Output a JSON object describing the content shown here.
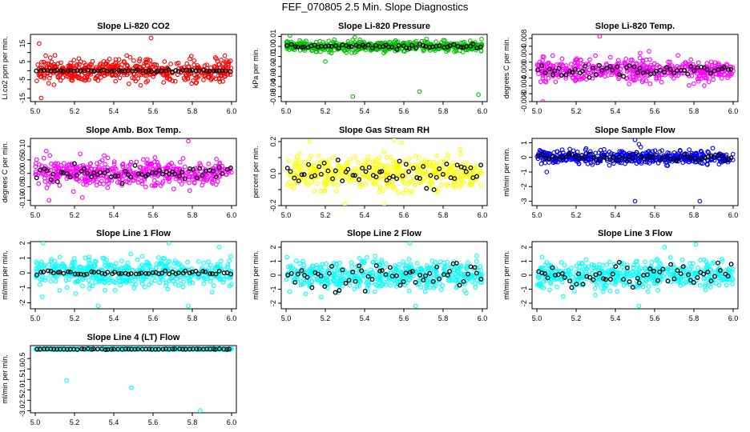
{
  "figure": {
    "title": "FEF_070805  2.5 Min. Slope Diagnostics"
  },
  "chart_data": [
    {
      "id": "co2",
      "type": "scatter",
      "title": "Slope Li-820 CO2",
      "ylabel": "Li.co2 ppm per min.",
      "xlim": [
        5.0,
        6.0
      ],
      "ylim": [
        -17,
        20
      ],
      "xticks": [
        5.0,
        5.2,
        5.4,
        5.6,
        5.8,
        6.0
      ],
      "yticks": [
        -15,
        -10,
        -5,
        0,
        5,
        10,
        15
      ],
      "ytick_labels": [
        "-15",
        "",
        "-5",
        "",
        "5",
        "",
        "15"
      ],
      "color": "#ff0000",
      "spread": 5,
      "center": 0,
      "black_spread": 0.5,
      "extra_points": [
        [
          5.02,
          15
        ],
        [
          5.59,
          18
        ],
        [
          5.03,
          -15
        ]
      ]
    },
    {
      "id": "pressure",
      "type": "scatter",
      "title": "Slope Li-820 Pressure",
      "ylabel": "kPa per min.",
      "xlim": [
        5.0,
        6.0
      ],
      "ylim": [
        -0.055,
        0.012
      ],
      "xticks": [
        5.0,
        5.2,
        5.4,
        5.6,
        5.8,
        6.0
      ],
      "yticks": [
        -0.05,
        -0.04,
        -0.03,
        -0.02,
        -0.01,
        0.0,
        0.01
      ],
      "ytick_labels": [
        "-0.05",
        "-0.04",
        "-0.03",
        "-0.02",
        "-0.01",
        "0.00",
        "0.01"
      ],
      "color": "#00c000",
      "spread": 0.004,
      "center": 0.0,
      "black_spread": 0.002,
      "extra_points": [
        [
          5.34,
          -0.05
        ],
        [
          5.98,
          -0.048
        ],
        [
          5.68,
          -0.045
        ],
        [
          5.2,
          -0.015
        ],
        [
          5.02,
          0.011
        ]
      ]
    },
    {
      "id": "temp",
      "type": "scatter",
      "title": "Slope Li-820 Temp.",
      "ylabel": "degrees C per min.",
      "xlim": [
        5.0,
        6.0
      ],
      "ylim": [
        -0.008,
        0.009
      ],
      "xticks": [
        5.0,
        5.2,
        5.4,
        5.6,
        5.8,
        6.0
      ],
      "yticks": [
        -0.008,
        -0.006,
        -0.004,
        -0.002,
        0.0,
        0.002,
        0.004,
        0.006,
        0.008
      ],
      "ytick_labels": [
        "-0.008",
        "",
        "-0.004",
        "",
        "0.000",
        "",
        "0.004",
        "",
        "0.008"
      ],
      "color": "#ff00ff",
      "spread": 0.0022,
      "center": 0.0,
      "black_spread": 0.0015,
      "extra_points": [
        [
          5.32,
          0.0085
        ],
        [
          5.03,
          -0.008
        ]
      ]
    },
    {
      "id": "ambbox",
      "type": "scatter",
      "title": "Slope Amb. Box Temp.",
      "ylabel": "degrees C per min.",
      "xlim": [
        5.0,
        6.0
      ],
      "ylim": [
        -0.12,
        0.13
      ],
      "xticks": [
        5.0,
        5.2,
        5.4,
        5.6,
        5.8,
        6.0
      ],
      "yticks": [
        -0.1,
        -0.05,
        0.0,
        0.05,
        0.1
      ],
      "ytick_labels": [
        "-0.10",
        "-0.05",
        "0.00",
        "0.05",
        "0.10"
      ],
      "color": "#ff00ff",
      "spread": 0.04,
      "center": 0.0,
      "black_spread": 0.025,
      "extra_points": [
        [
          5.78,
          0.12
        ],
        [
          5.07,
          -0.1
        ],
        [
          5.24,
          -0.09
        ]
      ]
    },
    {
      "id": "rh",
      "type": "scatter",
      "title": "Slope Gas Stream RH",
      "ylabel": "percent per min.",
      "xlim": [
        5.0,
        6.0
      ],
      "ylim": [
        -0.2,
        0.22
      ],
      "xticks": [
        5.0,
        5.2,
        5.4,
        5.6,
        5.8,
        6.0
      ],
      "yticks": [
        -0.2,
        -0.1,
        0.0,
        0.1,
        0.2
      ],
      "ytick_labels": [
        "-0.2",
        "",
        "0.0",
        "",
        "0.2"
      ],
      "color": "#ffff00",
      "spread": 0.08,
      "center": 0.0,
      "black_spread": 0.07,
      "extra_points": [
        [
          5.55,
          0.21
        ],
        [
          5.12,
          0.2
        ],
        [
          5.5,
          -0.19
        ],
        [
          5.3,
          -0.19
        ]
      ]
    },
    {
      "id": "sampleflow",
      "type": "scatter",
      "title": "Slope Sample Flow",
      "ylabel": "ml/min per min.",
      "xlim": [
        5.0,
        6.0
      ],
      "ylim": [
        -3.3,
        1.3
      ],
      "xticks": [
        5.0,
        5.2,
        5.4,
        5.6,
        5.8,
        6.0
      ],
      "yticks": [
        -3,
        -2,
        -1,
        0,
        1
      ],
      "ytick_labels": [
        "-3",
        "-2",
        "-1",
        "0",
        "1"
      ],
      "color": "#0000ff",
      "spread": 0.35,
      "center": 0.0,
      "black_spread": 0.25,
      "extra_points": [
        [
          5.5,
          1.2
        ],
        [
          5.52,
          0.9
        ],
        [
          5.5,
          -3.0
        ],
        [
          5.83,
          -3.0
        ],
        [
          5.05,
          -1.0
        ]
      ]
    },
    {
      "id": "line1",
      "type": "scatter",
      "title": "Slope Line 1 Flow",
      "ylabel": "ml/min per min.",
      "xlim": [
        5.0,
        6.0
      ],
      "ylim": [
        -2.4,
        2.1
      ],
      "xticks": [
        5.0,
        5.2,
        5.4,
        5.6,
        5.8,
        6.0
      ],
      "yticks": [
        -2,
        -1,
        0,
        1,
        2
      ],
      "ytick_labels": [
        "-2",
        "-1",
        "0",
        "1",
        "2"
      ],
      "color": "#00ffff",
      "spread": 0.75,
      "center": 0.0,
      "black_spread": 0.12,
      "extra_points": [
        [
          5.32,
          -2.2
        ],
        [
          5.78,
          -2.2
        ],
        [
          5.68,
          2.0
        ],
        [
          5.04,
          2.0
        ]
      ]
    },
    {
      "id": "line2",
      "type": "scatter",
      "title": "Slope Line 2 Flow",
      "ylabel": "ml/min per min.",
      "xlim": [
        5.0,
        6.0
      ],
      "ylim": [
        -2.4,
        2.4
      ],
      "xticks": [
        5.0,
        5.2,
        5.4,
        5.6,
        5.8,
        6.0
      ],
      "yticks": [
        -2,
        -1,
        0,
        1,
        2
      ],
      "ytick_labels": [
        "-2",
        "-1",
        "0",
        "1",
        "2"
      ],
      "color": "#00ffff",
      "spread": 0.8,
      "center": 0.0,
      "black_spread": 0.9,
      "extra_points": [
        [
          5.66,
          -2.2
        ],
        [
          5.63,
          2.3
        ]
      ]
    },
    {
      "id": "line3",
      "type": "scatter",
      "title": "Slope Line 3 Flow",
      "ylabel": "ml/min per min.",
      "xlim": [
        5.0,
        6.0
      ],
      "ylim": [
        -2.4,
        2.4
      ],
      "xticks": [
        5.0,
        5.2,
        5.4,
        5.6,
        5.8,
        6.0
      ],
      "yticks": [
        -2,
        -1,
        0,
        1,
        2
      ],
      "ytick_labels": [
        "-2",
        "-1",
        "0",
        "1",
        "2"
      ],
      "color": "#00ffff",
      "spread": 0.75,
      "center": 0.0,
      "black_spread": 0.9,
      "extra_points": [
        [
          5.52,
          -2.2
        ],
        [
          5.81,
          2.2
        ],
        [
          5.65,
          2.0
        ]
      ]
    },
    {
      "id": "line4",
      "type": "scatter",
      "title": "Slope Line 4 (LT) Flow",
      "ylabel": "ml/min per min.",
      "xlim": [
        5.0,
        6.0
      ],
      "ylim": [
        -3.1,
        0.12
      ],
      "xticks": [
        5.0,
        5.2,
        5.4,
        5.6,
        5.8,
        6.0
      ],
      "yticks": [
        -3.0,
        -2.5,
        -2.0,
        -1.5,
        -1.0,
        -0.5
      ],
      "ytick_labels": [
        "-3.0",
        "-2.5",
        "-2.0",
        "-1.5",
        "-1.0",
        "-0.5"
      ],
      "color": "#00ffff",
      "spread": 0.025,
      "center": -0.05,
      "black_spread": 0.015,
      "extra_points": [
        [
          5.16,
          -1.55
        ],
        [
          5.49,
          -1.9
        ],
        [
          5.84,
          -3.0
        ]
      ]
    }
  ]
}
